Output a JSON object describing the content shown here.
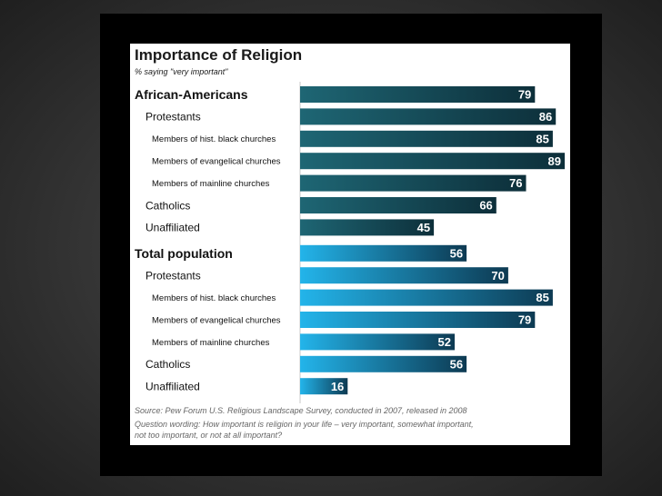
{
  "chart_data": {
    "type": "bar",
    "title": "Importance of Religion",
    "subtitle": "% saying \"very important\"",
    "xlim": [
      0,
      90
    ],
    "groups": [
      {
        "name": "African-Americans",
        "value": 79,
        "color": "#1d5f6d",
        "rows": [
          {
            "label": "Protestants",
            "value": 86,
            "level": 1
          },
          {
            "label": "Members of hist. black churches",
            "value": 85,
            "level": 2
          },
          {
            "label": "Members of evangelical churches",
            "value": 89,
            "level": 2
          },
          {
            "label": "Members of mainline churches",
            "value": 76,
            "level": 2
          },
          {
            "label": "Catholics",
            "value": 66,
            "level": 1
          },
          {
            "label": "Unaffiliated",
            "value": 45,
            "level": 1
          }
        ]
      },
      {
        "name": "Total population",
        "value": 56,
        "color": "#18a2d9",
        "rows": [
          {
            "label": "Protestants",
            "value": 70,
            "level": 1
          },
          {
            "label": "Members of hist. black churches",
            "value": 85,
            "level": 2
          },
          {
            "label": "Members of evangelical churches",
            "value": 79,
            "level": 2
          },
          {
            "label": "Members of mainline churches",
            "value": 52,
            "level": 2
          },
          {
            "label": "Catholics",
            "value": 56,
            "level": 1
          },
          {
            "label": "Unaffiliated",
            "value": 16,
            "level": 1
          }
        ]
      }
    ],
    "source": "Source: Pew Forum U.S. Religious Landscape Survey, conducted in 2007, released in 2008",
    "question_line1": "Question wording: How important is religion in your life – very important, somewhat important,",
    "question_line2": "not too important, or not at all important?"
  }
}
